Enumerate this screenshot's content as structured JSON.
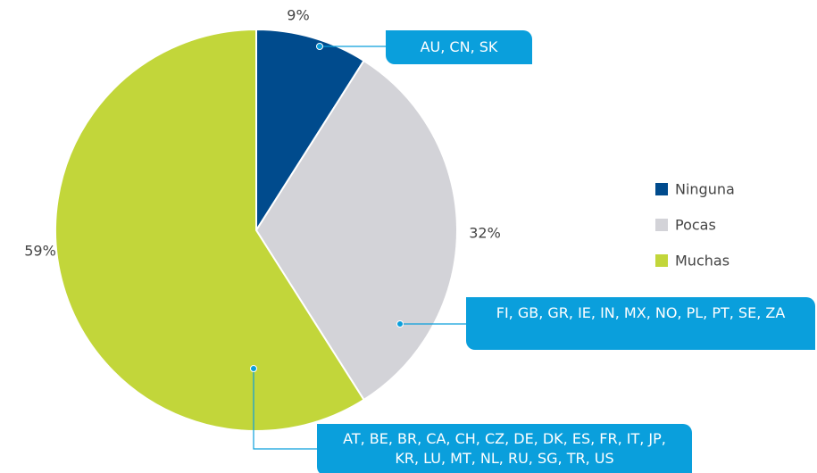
{
  "chart_data": {
    "type": "pie",
    "categories": [
      "Ninguna",
      "Pocas",
      "Muchas"
    ],
    "values": [
      9,
      32,
      59
    ],
    "value_labels": [
      "9%",
      "32%",
      "59%"
    ],
    "colors": [
      "#004b8d",
      "#d3d3d8",
      "#c2d63a"
    ],
    "annotations": [
      "AU, CN, SK",
      "FI, GB, GR, IE, IN, MX, NO, PL, PT, SE, ZA",
      "AT, BE, BR, CA, CH, CZ, DE, DK, ES, FR, IT, JP, KR, LU, MT, NL, RU, SG, TR, US"
    ],
    "annotation_color": "#0a9fdc",
    "legend": "right"
  }
}
